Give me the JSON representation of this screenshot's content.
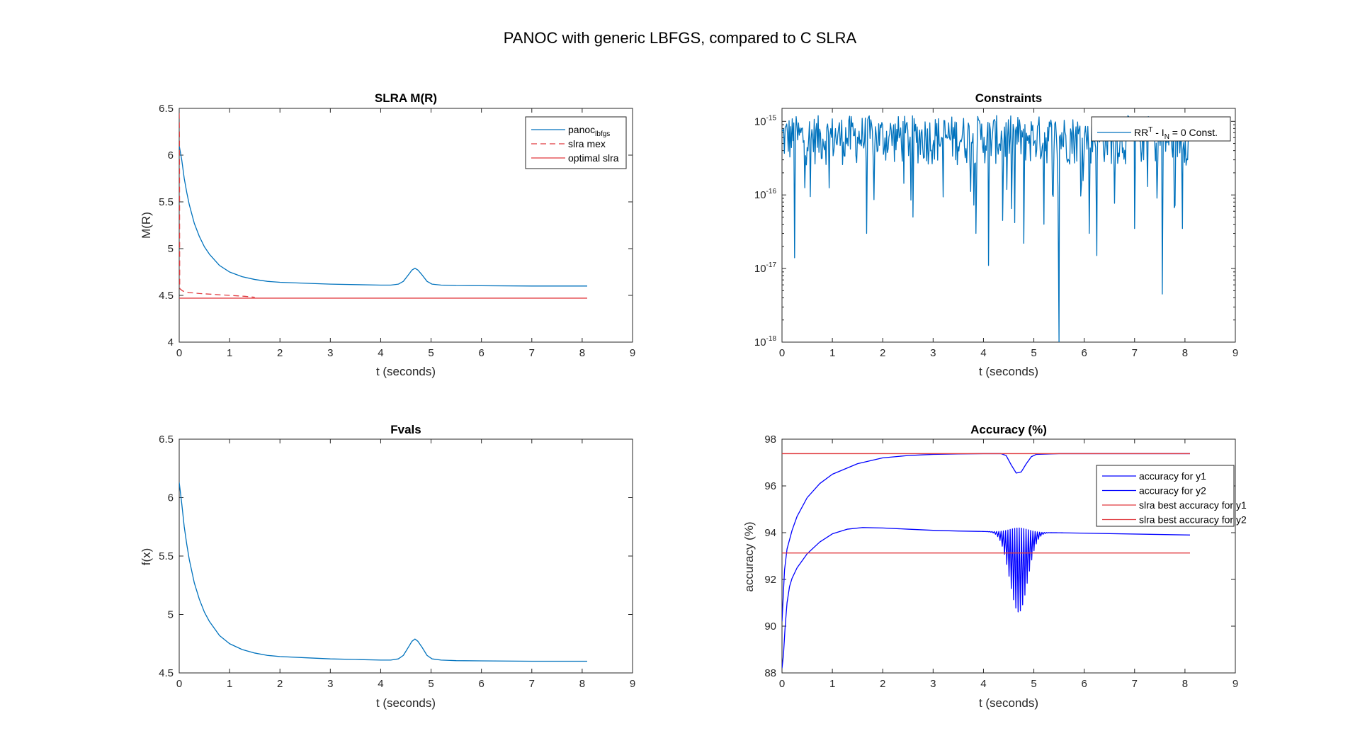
{
  "figure": {
    "title": "PANOC with generic LBFGS, compared to C SLRA"
  },
  "chart_data": [
    {
      "id": "slra",
      "type": "line",
      "title": "SLRA M(R)",
      "xlabel": "t (seconds)",
      "ylabel": "M(R)",
      "xlim": [
        0,
        9
      ],
      "ylim": [
        4,
        6.5
      ],
      "xticks": [
        0,
        1,
        2,
        3,
        4,
        5,
        6,
        7,
        8,
        9
      ],
      "yticks": [
        4,
        4.5,
        5,
        5.5,
        6,
        6.5
      ],
      "yscale": "linear",
      "grid": false,
      "legend_position": "top-right",
      "series": [
        {
          "name": "panoc",
          "name_sub": "lbfgs",
          "color": "#0072BD",
          "style": "solid",
          "points": [
            [
              0,
              6.1
            ],
            [
              0.05,
              5.95
            ],
            [
              0.1,
              5.75
            ],
            [
              0.15,
              5.6
            ],
            [
              0.2,
              5.47
            ],
            [
              0.3,
              5.27
            ],
            [
              0.4,
              5.13
            ],
            [
              0.5,
              5.02
            ],
            [
              0.6,
              4.94
            ],
            [
              0.8,
              4.82
            ],
            [
              1,
              4.75
            ],
            [
              1.25,
              4.7
            ],
            [
              1.5,
              4.67
            ],
            [
              1.75,
              4.65
            ],
            [
              2,
              4.64
            ],
            [
              2.5,
              4.63
            ],
            [
              3,
              4.62
            ],
            [
              3.5,
              4.615
            ],
            [
              4,
              4.61
            ],
            [
              4.2,
              4.61
            ],
            [
              4.35,
              4.62
            ],
            [
              4.45,
              4.65
            ],
            [
              4.55,
              4.72
            ],
            [
              4.62,
              4.77
            ],
            [
              4.68,
              4.79
            ],
            [
              4.74,
              4.77
            ],
            [
              4.82,
              4.72
            ],
            [
              4.92,
              4.65
            ],
            [
              5.02,
              4.62
            ],
            [
              5.2,
              4.61
            ],
            [
              5.5,
              4.605
            ],
            [
              6,
              4.603
            ],
            [
              7,
              4.6
            ],
            [
              8.1,
              4.6
            ]
          ]
        },
        {
          "name": "slra mex",
          "color": "#E0393E",
          "style": "dashed",
          "points": [
            [
              0,
              6.45
            ],
            [
              0.005,
              6.2
            ],
            [
              0.01,
              4.6
            ],
            [
              0.015,
              4.57
            ],
            [
              0.04,
              4.56
            ],
            [
              0.06,
              4.55
            ],
            [
              0.1,
              4.54
            ],
            [
              0.2,
              4.53
            ],
            [
              0.4,
              4.52
            ],
            [
              0.7,
              4.51
            ],
            [
              1,
              4.5
            ],
            [
              1.3,
              4.49
            ],
            [
              1.5,
              4.48
            ]
          ]
        },
        {
          "name": "optimal slra",
          "color": "#E0393E",
          "style": "solid",
          "points": [
            [
              0,
              4.47
            ],
            [
              8.1,
              4.47
            ]
          ]
        }
      ]
    },
    {
      "id": "constraints",
      "type": "line",
      "title": "Constraints",
      "xlabel": "t (seconds)",
      "ylabel": "",
      "xlim": [
        0,
        9
      ],
      "ylim": [
        1e-18,
        1.5e-15
      ],
      "xticks": [
        0,
        1,
        2,
        3,
        4,
        5,
        6,
        7,
        8,
        9
      ],
      "ytick_exponents": [
        -18,
        -17,
        -16,
        -15
      ],
      "ytick_base": "10",
      "yscale": "log",
      "grid": false,
      "legend_position": "top-right",
      "series": [
        {
          "name": "RR",
          "name_sup": "T",
          "name_mid": " - I",
          "name_sub": "N",
          "name_tail": " = 0 Const.",
          "color": "#0072BD",
          "style": "solid",
          "x_range": [
            0,
            8.1
          ],
          "samples": 520,
          "typical_range": [
            2.5e-16,
            1.2e-15
          ],
          "dips": [
            [
              0.25,
              1.4e-17
            ],
            [
              1.68,
              3e-17
            ],
            [
              2.6,
              5e-17
            ],
            [
              3.85,
              3e-17
            ],
            [
              4.1,
              1.1e-17
            ],
            [
              4.38,
              4.5e-17
            ],
            [
              4.62,
              4.2e-17
            ],
            [
              4.8,
              2.2e-17
            ],
            [
              5.2,
              4e-17
            ],
            [
              5.5,
              1e-18
            ],
            [
              6.1,
              3e-17
            ],
            [
              6.25,
              1.5e-17
            ],
            [
              7,
              3.5e-17
            ],
            [
              7.55,
              4.5e-18
            ],
            [
              7.95,
              3.5e-17
            ]
          ]
        }
      ]
    },
    {
      "id": "fvals",
      "type": "line",
      "title": "Fvals",
      "xlabel": "t (seconds)",
      "ylabel": "f(x)",
      "xlim": [
        0,
        9
      ],
      "ylim": [
        4.5,
        6.5
      ],
      "xticks": [
        0,
        1,
        2,
        3,
        4,
        5,
        6,
        7,
        8,
        9
      ],
      "yticks": [
        4.5,
        5,
        5.5,
        6,
        6.5
      ],
      "yscale": "linear",
      "grid": false,
      "series": [
        {
          "name": "",
          "color": "#0072BD",
          "style": "solid",
          "points": [
            [
              0,
              6.13
            ],
            [
              0.05,
              5.95
            ],
            [
              0.1,
              5.75
            ],
            [
              0.15,
              5.6
            ],
            [
              0.2,
              5.47
            ],
            [
              0.3,
              5.27
            ],
            [
              0.4,
              5.13
            ],
            [
              0.5,
              5.02
            ],
            [
              0.6,
              4.94
            ],
            [
              0.8,
              4.82
            ],
            [
              1,
              4.75
            ],
            [
              1.25,
              4.7
            ],
            [
              1.5,
              4.67
            ],
            [
              1.75,
              4.65
            ],
            [
              2,
              4.64
            ],
            [
              2.5,
              4.63
            ],
            [
              3,
              4.62
            ],
            [
              3.5,
              4.615
            ],
            [
              4,
              4.61
            ],
            [
              4.2,
              4.61
            ],
            [
              4.35,
              4.62
            ],
            [
              4.45,
              4.65
            ],
            [
              4.55,
              4.72
            ],
            [
              4.62,
              4.77
            ],
            [
              4.68,
              4.79
            ],
            [
              4.74,
              4.77
            ],
            [
              4.82,
              4.72
            ],
            [
              4.92,
              4.65
            ],
            [
              5.02,
              4.62
            ],
            [
              5.2,
              4.61
            ],
            [
              5.5,
              4.605
            ],
            [
              6,
              4.603
            ],
            [
              7,
              4.6
            ],
            [
              8.1,
              4.6
            ]
          ]
        }
      ]
    },
    {
      "id": "accuracy",
      "type": "line",
      "title": "Accuracy (%)",
      "xlabel": "t (seconds)",
      "ylabel": "accuracy (%)",
      "xlim": [
        0,
        9
      ],
      "ylim": [
        88,
        98
      ],
      "xticks": [
        0,
        1,
        2,
        3,
        4,
        5,
        6,
        7,
        8,
        9
      ],
      "yticks": [
        88,
        90,
        92,
        94,
        96,
        98
      ],
      "yscale": "linear",
      "grid": false,
      "legend_position": "top-right",
      "series": [
        {
          "name": "accuracy for y1",
          "color": "#0000FF",
          "style": "solid",
          "points": [
            [
              0,
              90.2
            ],
            [
              0.05,
              92.4
            ],
            [
              0.1,
              93.3
            ],
            [
              0.2,
              94.1
            ],
            [
              0.3,
              94.7
            ],
            [
              0.5,
              95.5
            ],
            [
              0.75,
              96.1
            ],
            [
              1,
              96.5
            ],
            [
              1.5,
              96.95
            ],
            [
              2,
              97.2
            ],
            [
              2.5,
              97.3
            ],
            [
              3,
              97.35
            ],
            [
              3.5,
              97.37
            ],
            [
              4,
              97.38
            ],
            [
              4.35,
              97.38
            ],
            [
              4.45,
              97.3
            ],
            [
              4.55,
              96.9
            ],
            [
              4.65,
              96.55
            ],
            [
              4.75,
              96.6
            ],
            [
              4.85,
              96.95
            ],
            [
              4.95,
              97.25
            ],
            [
              5.05,
              97.35
            ],
            [
              5.5,
              97.38
            ],
            [
              7,
              97.38
            ],
            [
              8.1,
              97.38
            ]
          ]
        },
        {
          "name": "accuracy for y2",
          "color": "#0000FF",
          "style": "solid",
          "points": [
            [
              0,
              88.2
            ],
            [
              0.03,
              88.8
            ],
            [
              0.06,
              89.9
            ],
            [
              0.1,
              91
            ],
            [
              0.15,
              91.7
            ],
            [
              0.2,
              92.05
            ],
            [
              0.3,
              92.5
            ],
            [
              0.5,
              93.1
            ],
            [
              0.75,
              93.6
            ],
            [
              1,
              93.95
            ],
            [
              1.3,
              94.15
            ],
            [
              1.6,
              94.22
            ],
            [
              2,
              94.2
            ],
            [
              2.5,
              94.15
            ],
            [
              3,
              94.1
            ],
            [
              3.5,
              94.07
            ],
            [
              4,
              94.03
            ],
            [
              8.1,
              93.9
            ]
          ],
          "oscillation": {
            "x_range": [
              3.9,
              5.6
            ],
            "center": 4.7,
            "width": 0.25,
            "upper": 94.2,
            "min_at_center": 90.6,
            "period": 0.045
          }
        },
        {
          "name": "slra best accuracy for y1",
          "color": "#E0393E",
          "style": "solid",
          "points": [
            [
              0,
              97.38
            ],
            [
              8.1,
              97.38
            ]
          ]
        },
        {
          "name": "slra best accuracy for y2",
          "color": "#E0393E",
          "style": "solid",
          "points": [
            [
              0,
              93.13
            ],
            [
              8.1,
              93.13
            ]
          ]
        }
      ]
    }
  ]
}
